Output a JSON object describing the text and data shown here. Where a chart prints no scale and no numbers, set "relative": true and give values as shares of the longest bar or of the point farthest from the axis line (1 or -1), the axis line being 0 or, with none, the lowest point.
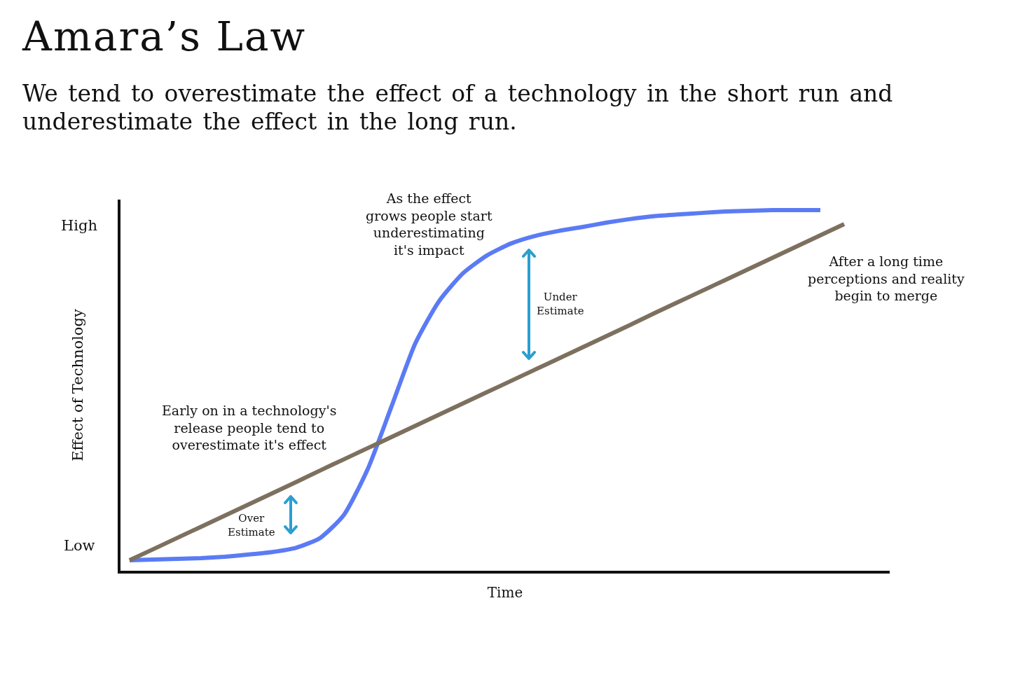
{
  "chart_data": {
    "type": "line",
    "title": "Amara’s Law",
    "subtitle": "We tend to overestimate the effect of a technology in the short run and underestimate the effect in the long run.",
    "xlabel": "Time",
    "ylabel": "Effect of Technology",
    "categories": [
      null,
      null,
      null,
      null,
      null,
      null,
      null,
      null,
      null,
      null,
      null,
      null,
      null,
      null,
      null,
      null,
      null,
      null,
      null,
      null,
      null,
      null,
      null,
      null,
      null,
      null,
      null,
      null,
      null,
      null,
      null
    ],
    "series": [
      {
        "color": "#5b7bf5",
        "values": [
          0.029,
          0.031,
          0.033,
          0.035,
          0.039,
          0.045,
          0.052,
          0.064,
          0.091,
          0.155,
          0.282,
          0.456,
          0.631,
          0.748,
          0.825,
          0.874,
          0.907,
          0.928,
          0.942,
          0.953,
          0.965,
          0.975,
          0.983,
          0.988,
          0.992,
          0.996,
          0.998,
          1,
          1,
          1,
          null
        ]
      },
      {
        "color": "#7d705e",
        "values": [
          0.029,
          0.06,
          0.091,
          0.122,
          0.153,
          0.184,
          0.215,
          0.246,
          0.278,
          0.309,
          0.34,
          0.371,
          0.402,
          0.433,
          0.464,
          0.495,
          0.526,
          0.557,
          0.588,
          0.619,
          0.65,
          0.681,
          0.713,
          0.744,
          0.775,
          0.806,
          0.837,
          0.868,
          0.899,
          0.93,
          0.961
        ]
      }
    ],
    "relative": true,
    "annotations": [
      "High",
      "As the effect\ngrows people start\nunderestimating\nit's impact",
      "After a long time\nperceptions and reality\nbegin to merge",
      "Under\nEstimate",
      "Early on in a technology's\nrelease people tend to\noverestimate it's effect",
      "Over\nEstimate",
      "Low"
    ],
    "marker": "none",
    "line_style": "solid"
  }
}
